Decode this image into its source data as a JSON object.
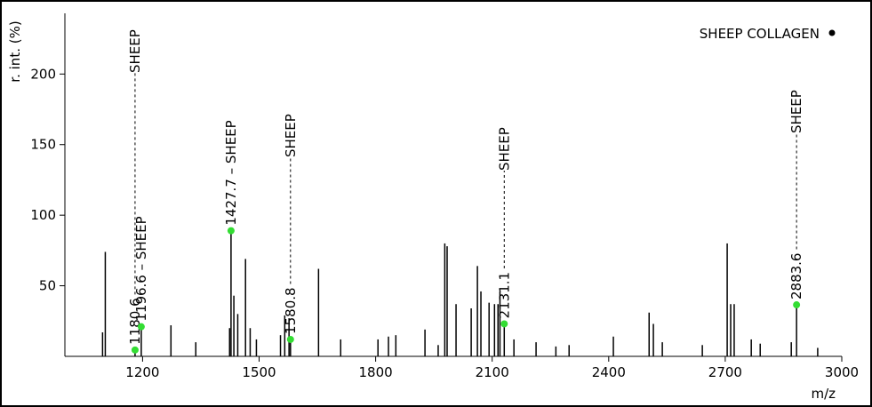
{
  "chart_data": {
    "type": "spectrum",
    "x_label": "m/z",
    "y_label": "r. int. (%)",
    "legend": {
      "label": "SHEEP COLLAGEN",
      "position": "upper right"
    },
    "color": "#000000",
    "marker_color": "#33dd33",
    "xlim": [
      1000,
      3000
    ],
    "xticks": [
      1200,
      1500,
      1800,
      2100,
      2400,
      2700,
      3000
    ],
    "ylim": [
      0,
      243
    ],
    "yticks": [
      50,
      100,
      150,
      200
    ],
    "x": [
      1097,
      1104,
      1180.6,
      1196.6,
      1273,
      1337,
      1424,
      1427.7,
      1435,
      1445,
      1465,
      1477,
      1493,
      1555,
      1566,
      1577,
      1580.8,
      1653,
      1710,
      1806,
      1833,
      1852,
      1927,
      1961,
      1978,
      1984,
      2007,
      2046,
      2062,
      2071,
      2092,
      2106,
      2115,
      2120,
      2131.1,
      2156,
      2213,
      2264,
      2298,
      2412,
      2504,
      2515,
      2538,
      2641,
      2705,
      2714,
      2723,
      2767,
      2790,
      2870,
      2883.6,
      2938
    ],
    "values": [
      17,
      74,
      4.5,
      21,
      22,
      10,
      20,
      89,
      43,
      30,
      69,
      20,
      12,
      15,
      29,
      27,
      12,
      62,
      12,
      12,
      14,
      15,
      19,
      8,
      80,
      78,
      37,
      34,
      64,
      46,
      38,
      37,
      37,
      46,
      23,
      12,
      10,
      7,
      8,
      14,
      31,
      23,
      10,
      8,
      80,
      37,
      37,
      12,
      9,
      10,
      36.5,
      6
    ],
    "annotations": [
      {
        "x": 1180.6,
        "y": 4.5,
        "label": "1180.6",
        "tag": "SHEEP"
      },
      {
        "x": 1196.6,
        "y": 21,
        "label": "1196.6 – SHEEP"
      },
      {
        "x": 1427.7,
        "y": 89,
        "label": "1427.7 – SHEEP"
      },
      {
        "x": 1580.8,
        "y": 12,
        "label": "1580.8",
        "tag": "SHEEP"
      },
      {
        "x": 2131.1,
        "y": 23,
        "label": "2131.1",
        "tag": "SHEEP"
      },
      {
        "x": 2883.6,
        "y": 36.5,
        "label": "2883.6",
        "tag": "SHEEP"
      }
    ]
  }
}
